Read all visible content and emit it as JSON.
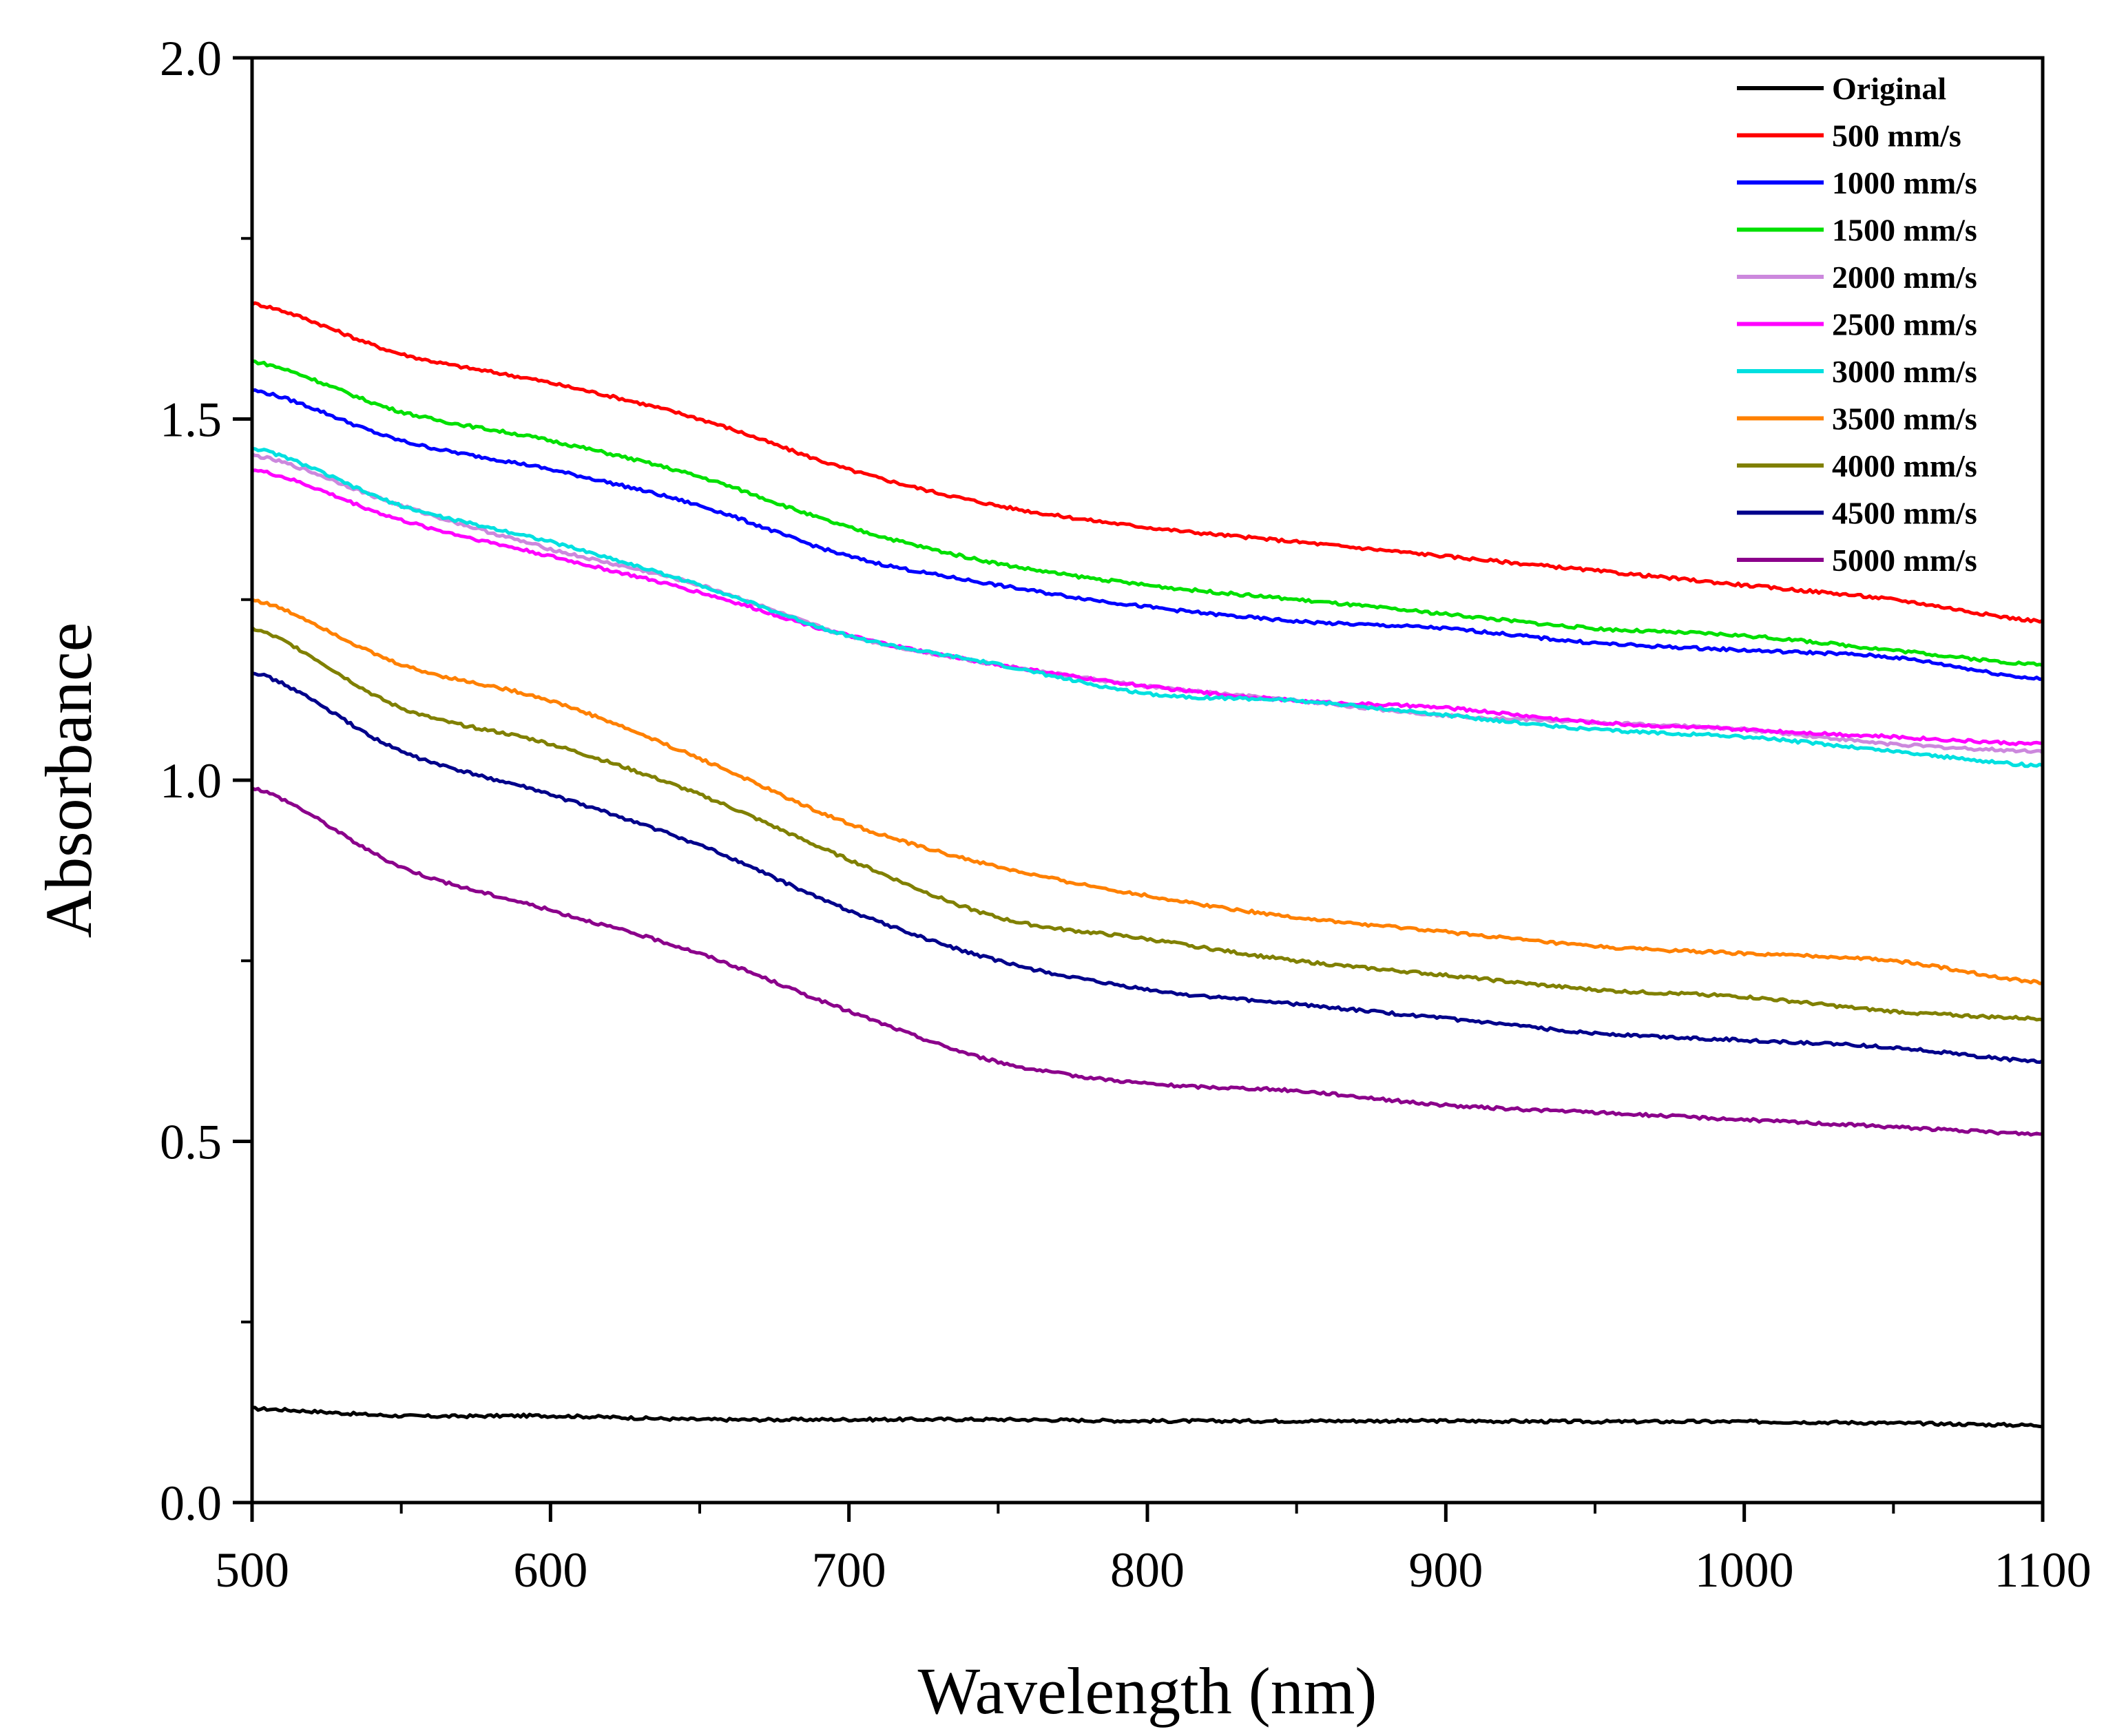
{
  "chart_data": {
    "type": "line",
    "title": "",
    "xlabel": "Wavelength (nm)",
    "ylabel": "Absorbance",
    "xlim": [
      500,
      1100
    ],
    "ylim": [
      0.0,
      2.0
    ],
    "xticks": [
      500,
      600,
      700,
      800,
      900,
      1000,
      1100
    ],
    "xtick_labels": [
      "500",
      "600",
      "700",
      "800",
      "900",
      "1000",
      "1100"
    ],
    "yticks": [
      0.0,
      0.5,
      1.0,
      1.5,
      2.0
    ],
    "ytick_labels": [
      "0.0",
      "0.5",
      "1.0",
      "1.5",
      "2.0"
    ],
    "legend_position": "top-right",
    "x": [
      500,
      550,
      600,
      650,
      700,
      750,
      800,
      850,
      900,
      950,
      1000,
      1050,
      1100
    ],
    "series": [
      {
        "name": "Original",
        "color": "#000000",
        "values": [
          0.13,
          0.12,
          0.12,
          0.115,
          0.115,
          0.115,
          0.113,
          0.113,
          0.113,
          0.112,
          0.112,
          0.11,
          0.107
        ]
      },
      {
        "name": "500 mm/s",
        "color": "#ff0000",
        "values": [
          1.66,
          1.59,
          1.55,
          1.5,
          1.43,
          1.38,
          1.35,
          1.33,
          1.31,
          1.29,
          1.27,
          1.25,
          1.22
        ]
      },
      {
        "name": "1000 mm/s",
        "color": "#0000ff",
        "values": [
          1.54,
          1.47,
          1.43,
          1.38,
          1.31,
          1.27,
          1.24,
          1.22,
          1.21,
          1.19,
          1.18,
          1.17,
          1.14
        ]
      },
      {
        "name": "1500 mm/s",
        "color": "#00e000",
        "values": [
          1.58,
          1.51,
          1.47,
          1.42,
          1.35,
          1.3,
          1.27,
          1.25,
          1.23,
          1.21,
          1.2,
          1.18,
          1.16
        ]
      },
      {
        "name": "2000 mm/s",
        "color": "#cc88dd",
        "values": [
          1.45,
          1.38,
          1.32,
          1.27,
          1.2,
          1.16,
          1.13,
          1.11,
          1.09,
          1.08,
          1.07,
          1.05,
          1.04
        ]
      },
      {
        "name": "2500 mm/s",
        "color": "#ff00ff",
        "values": [
          1.43,
          1.36,
          1.31,
          1.26,
          1.2,
          1.16,
          1.13,
          1.11,
          1.1,
          1.08,
          1.07,
          1.06,
          1.05
        ]
      },
      {
        "name": "3000 mm/s",
        "color": "#00e0e0",
        "values": [
          1.46,
          1.38,
          1.33,
          1.27,
          1.2,
          1.16,
          1.12,
          1.11,
          1.09,
          1.07,
          1.06,
          1.04,
          1.02
        ]
      },
      {
        "name": "3500 mm/s",
        "color": "#ff8000",
        "values": [
          1.25,
          1.16,
          1.11,
          1.03,
          0.94,
          0.88,
          0.84,
          0.81,
          0.79,
          0.77,
          0.76,
          0.75,
          0.72
        ]
      },
      {
        "name": "4000 mm/s",
        "color": "#808000",
        "values": [
          1.21,
          1.1,
          1.05,
          0.98,
          0.89,
          0.81,
          0.78,
          0.75,
          0.73,
          0.71,
          0.7,
          0.68,
          0.67
        ]
      },
      {
        "name": "4500 mm/s",
        "color": "#00008b",
        "values": [
          1.15,
          1.04,
          0.98,
          0.91,
          0.82,
          0.75,
          0.71,
          0.69,
          0.67,
          0.65,
          0.64,
          0.63,
          0.61
        ]
      },
      {
        "name": "5000 mm/s",
        "color": "#8b008b",
        "values": [
          0.99,
          0.88,
          0.82,
          0.76,
          0.68,
          0.61,
          0.58,
          0.57,
          0.55,
          0.54,
          0.53,
          0.52,
          0.51
        ]
      }
    ]
  }
}
